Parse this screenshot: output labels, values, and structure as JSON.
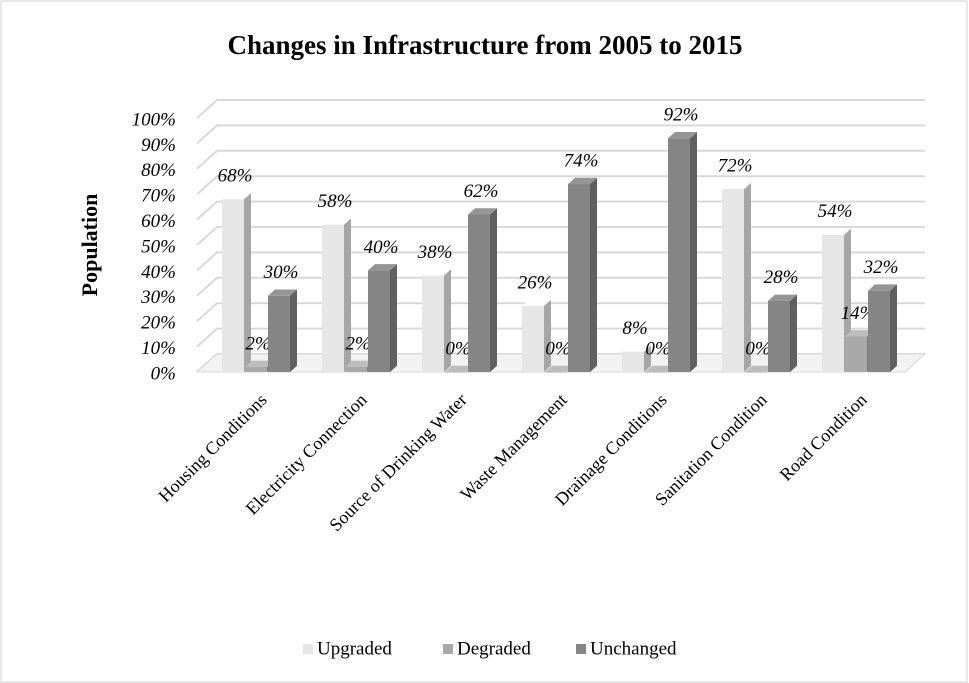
{
  "chart_data": {
    "type": "bar",
    "title": "Changes in Infrastructure from 2005 to 2015",
    "y_label": "Population",
    "categories": [
      "Housing Conditions",
      "Electricity Connection",
      "Source of Drinking Water",
      "Waste Management",
      "Drainage Conditions",
      "Sanitation Condition",
      "Road Condition"
    ],
    "series": [
      {
        "name": "Upgraded",
        "color": "#e6e6e6",
        "values": [
          68,
          58,
          38,
          26,
          8,
          72,
          54
        ],
        "value_labels": [
          "68%",
          "58%",
          "38%",
          "26%",
          "8%",
          "72%",
          "54%"
        ]
      },
      {
        "name": "Degraded",
        "color": "#a9a9a9",
        "values": [
          2,
          2,
          0,
          0,
          0,
          0,
          14
        ],
        "value_labels": [
          "2%",
          "2%",
          "0%",
          "0%",
          "0%",
          "0%",
          "14%"
        ]
      },
      {
        "name": "Unchanged",
        "color": "#858585",
        "values": [
          30,
          40,
          62,
          74,
          92,
          28,
          32
        ],
        "value_labels": [
          "30%",
          "40%",
          "62%",
          "74%",
          "92%",
          "28%",
          "32%"
        ]
      }
    ],
    "ylim": [
      0,
      100
    ],
    "yticks": [
      {
        "value": 0,
        "label": "0%"
      },
      {
        "value": 10,
        "label": "10%"
      },
      {
        "value": 20,
        "label": "20%"
      },
      {
        "value": 30,
        "label": "30%"
      },
      {
        "value": 40,
        "label": "40%"
      },
      {
        "value": 50,
        "label": "50%"
      },
      {
        "value": 60,
        "label": "60%"
      },
      {
        "value": 70,
        "label": "70%"
      },
      {
        "value": 80,
        "label": "80%"
      },
      {
        "value": 90,
        "label": "90%"
      },
      {
        "value": 100,
        "label": "100%"
      }
    ],
    "grid": true,
    "legend": "bottom"
  }
}
